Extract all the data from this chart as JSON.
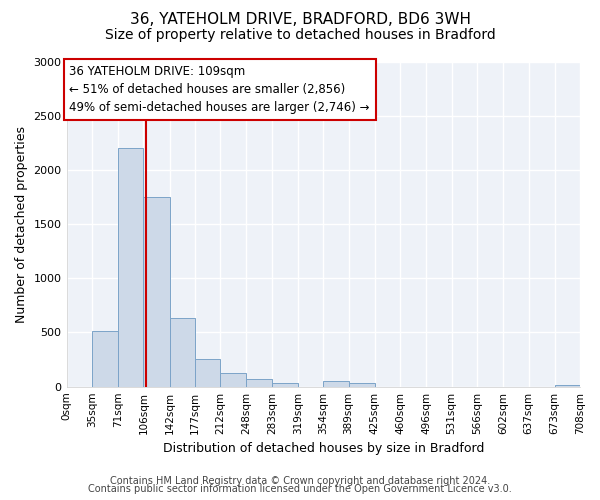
{
  "title": "36, YATEHOLM DRIVE, BRADFORD, BD6 3WH",
  "subtitle": "Size of property relative to detached houses in Bradford",
  "xlabel": "Distribution of detached houses by size in Bradford",
  "ylabel": "Number of detached properties",
  "bin_edges": [
    0,
    35,
    71,
    106,
    142,
    177,
    212,
    248,
    283,
    319,
    354,
    389,
    425,
    460,
    496,
    531,
    566,
    602,
    637,
    673,
    708
  ],
  "bin_labels": [
    "0sqm",
    "35sqm",
    "71sqm",
    "106sqm",
    "142sqm",
    "177sqm",
    "212sqm",
    "248sqm",
    "283sqm",
    "319sqm",
    "354sqm",
    "389sqm",
    "425sqm",
    "460sqm",
    "496sqm",
    "531sqm",
    "566sqm",
    "602sqm",
    "637sqm",
    "673sqm",
    "708sqm"
  ],
  "counts": [
    0,
    510,
    2200,
    1750,
    635,
    255,
    130,
    70,
    30,
    0,
    55,
    35,
    0,
    0,
    0,
    0,
    0,
    0,
    0,
    20
  ],
  "bar_color": "#cdd9e8",
  "bar_edge_color": "#7ba3c8",
  "property_value": 109,
  "vline_color": "#cc0000",
  "annotation_text": "36 YATEHOLM DRIVE: 109sqm\n← 51% of detached houses are smaller (2,856)\n49% of semi-detached houses are larger (2,746) →",
  "annotation_box_facecolor": "#ffffff",
  "annotation_box_edgecolor": "#cc0000",
  "ylim": [
    0,
    3000
  ],
  "yticks": [
    0,
    500,
    1000,
    1500,
    2000,
    2500,
    3000
  ],
  "footer_line1": "Contains HM Land Registry data © Crown copyright and database right 2024.",
  "footer_line2": "Contains public sector information licensed under the Open Government Licence v3.0.",
  "fig_facecolor": "#ffffff",
  "ax_facecolor": "#eef2f8",
  "grid_color": "#ffffff",
  "title_fontsize": 11,
  "subtitle_fontsize": 10,
  "axis_label_fontsize": 9,
  "tick_fontsize": 7.5,
  "footer_fontsize": 7,
  "annot_fontsize": 8.5
}
